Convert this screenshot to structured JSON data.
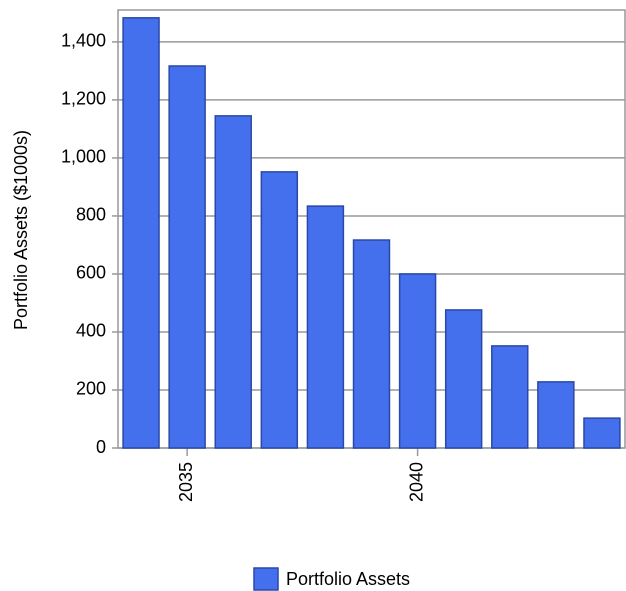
{
  "chart_data": {
    "type": "bar",
    "y_label": "Portfolio Assets ($1000s)",
    "categories": [
      null,
      "2035",
      null,
      null,
      null,
      null,
      "2040",
      null,
      null,
      null,
      null
    ],
    "series": [
      {
        "name": "Portfolio Assets",
        "color": "#4470ee",
        "values": [
          1483,
          1317,
          1145,
          952,
          834,
          717,
          600,
          476,
          352,
          228,
          103
        ]
      }
    ],
    "ylim": [
      0,
      1510
    ],
    "yticks": [
      0,
      200,
      400,
      600,
      800,
      {
        "value": 1000,
        "label": "1,000"
      },
      {
        "value": 1200,
        "label": "1,200"
      },
      {
        "value": 1400,
        "label": "1,400"
      }
    ],
    "grid": true,
    "legend": "bottom"
  }
}
